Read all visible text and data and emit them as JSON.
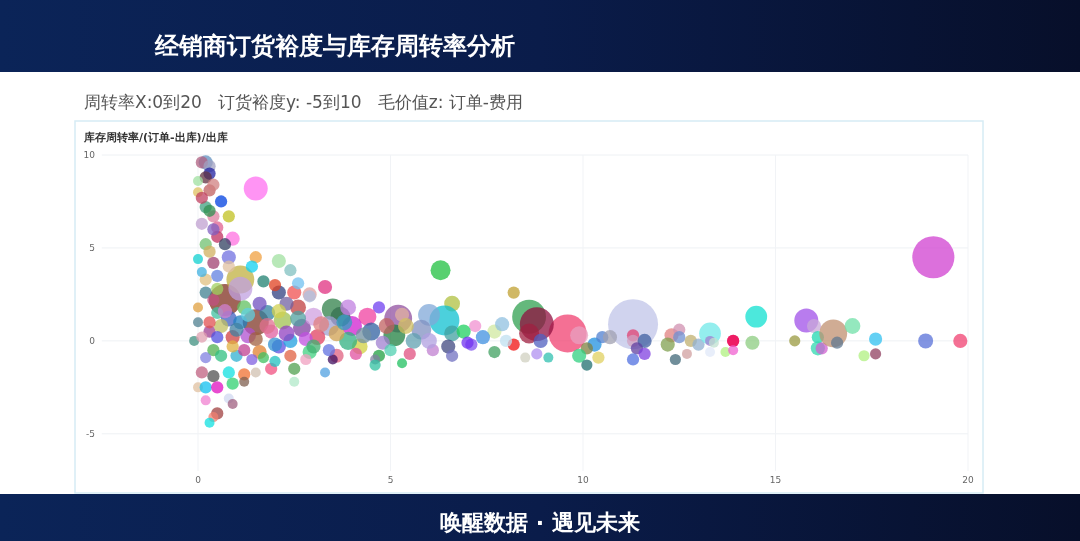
{
  "chart_data": {
    "type": "bubble",
    "title": "经销商订货裕度与库存周转率分析",
    "subtitle": "周转率X:0到20   订货裕度y: -5到10   毛价值z: 订单-费用",
    "ylabel": "库存周转率/(订单-出库)/出库",
    "annotations": [
      "唤醒数据 · 遇见未来"
    ],
    "xlim": [
      -2.5,
      20
    ],
    "xticks": [
      0,
      5,
      10,
      15,
      20
    ],
    "ylim": [
      -7,
      10
    ],
    "yticks": [
      -5,
      0,
      5,
      10
    ],
    "grid": true,
    "x": [
      11.3,
      14.5,
      14.4,
      15.5,
      15.8,
      16,
      16.1,
      16.1,
      16.2,
      16.5,
      16.6,
      17,
      17.6,
      17.3,
      17.6,
      18.9,
      19.8,
      19.1,
      12.3,
      12.5,
      12.2,
      12.5,
      12.8,
      13,
      12.7,
      12.4,
      13.3,
      13.3,
      13.4,
      13.3,
      13.9,
      13.9,
      13.7,
      13.9,
      9.6,
      9.9,
      10.3,
      10.1,
      9.9,
      10.1,
      10.4,
      10.5,
      10.7,
      11.3,
      11.3,
      11.6,
      11.4,
      11.6,
      11.3,
      8.2,
      8.6,
      8.8,
      8.6,
      8.9,
      9.1,
      8.8,
      8.5,
      8.2,
      8,
      7.7,
      7.4,
      7.2,
      7.1,
      6.6,
      6.4,
      6,
      5.8,
      6.6,
      6.9,
      6.5,
      6.6,
      7,
      6.1,
      5.6,
      5.2,
      5.1,
      4.7,
      5.3,
      4.8,
      4.4,
      4,
      4.2,
      4.7,
      4.6,
      5.3,
      4.6,
      3.7,
      3.5,
      3.4,
      3.9,
      3.6,
      3.5,
      6.3,
      1.5,
      3.3,
      2.9,
      2.1,
      2.5,
      2.6,
      1.5,
      0.7,
      1.1,
      1.1,
      1.5,
      1.4,
      2.1,
      2.4,
      1.7,
      2,
      2.9,
      0.2,
      0.1,
      0.3,
      0.3,
      0.2,
      0,
      0.3,
      0,
      0.6,
      0.8,
      0.2,
      0.1,
      0.4,
      0.1,
      0.5,
      0.9,
      0.5,
      0.7,
      0.2,
      0.8,
      0,
      0.4,
      0.8,
      0.2,
      0.1,
      0.2,
      0,
      -0.1,
      0.4,
      0.3,
      0.4,
      0.3,
      0.5,
      0.4,
      0.5,
      0.3,
      0.4,
      0,
      0.1,
      0.4,
      0.8,
      0.9,
      1.2,
      1.2,
      1.5,
      1.9,
      2.5,
      3.3,
      2.5,
      0,
      0.2,
      0.5,
      0.2,
      0.8,
      0.9,
      0.5,
      0.4,
      0.3,
      0.8,
      0.9,
      1,
      1.2,
      1.3,
      1.6,
      1.8,
      1.9,
      2.1,
      2.2,
      2.4,
      2.6,
      2.7,
      2.9,
      3,
      3.1,
      1.4,
      2,
      2.8,
      0.6,
      1.1,
      2.3,
      3.9,
      4.5,
      5.5,
      6,
      7.7,
      7.9,
      5.4,
      0.3,
      0.5,
      0.6,
      0.7,
      0.9,
      1,
      1.2,
      1.3,
      1.5,
      1.6,
      1.7,
      1.8,
      2,
      2.1,
      2.3,
      2.4,
      2.6,
      2.8,
      3,
      3.2,
      3.4,
      3.6,
      3.8,
      4.1,
      4.3,
      4.9,
      5,
      0.2,
      0.1,
      0.5
    ],
    "values": [
      0.9,
      1.3,
      -0.1,
      0,
      1.1,
      0.8,
      0.2,
      -0.4,
      -0.4,
      0.4,
      -0.1,
      0.8,
      0.1,
      -0.8,
      -0.7,
      0,
      0,
      4.5,
      0.3,
      0.6,
      -0.2,
      0.2,
      0,
      -0.2,
      -0.7,
      -1,
      0.4,
      0,
      -0.1,
      -0.6,
      0,
      0,
      -0.6,
      -0.5,
      0.4,
      0.3,
      -0.2,
      -0.4,
      -0.8,
      -1.3,
      -0.9,
      0.2,
      0.2,
      0.3,
      0,
      0,
      -0.4,
      -0.7,
      -1,
      2.6,
      1.3,
      0.9,
      0.4,
      0,
      -0.9,
      -0.7,
      -0.9,
      -0.2,
      0,
      0.5,
      0.2,
      0.8,
      -0.2,
      2,
      1.1,
      1.4,
      0.6,
      0.4,
      0.5,
      -0.3,
      -0.8,
      -0.1,
      -0.5,
      0,
      1.2,
      0.3,
      1.8,
      1.4,
      -0.1,
      1.3,
      0.8,
      -0.3,
      -0.8,
      -1,
      -1.2,
      -1.3,
      1.3,
      1.7,
      0.8,
      0,
      -0.8,
      -1,
      3.8,
      8.2,
      2.9,
      2.5,
      2.6,
      2.6,
      3.1,
      1,
      2.2,
      3.3,
      2.8,
      4.5,
      4,
      4.3,
      3.8,
      3.2,
      3,
      2.4,
      9.6,
      9.6,
      9.4,
      9,
      8.8,
      8.6,
      8.1,
      8,
      7.5,
      6.7,
      7.2,
      7.7,
      6.7,
      6.3,
      6.1,
      5.5,
      5.6,
      5.2,
      5.2,
      4.5,
      4.4,
      4.2,
      4,
      3.3,
      3.7,
      2.6,
      1,
      0,
      8.4,
      7,
      6,
      4.8,
      3.5,
      2.2,
      1.5,
      0.5,
      -0.5,
      1.8,
      -1.7,
      -1.9,
      -1.7,
      -2.3,
      -1.8,
      -2.2,
      -1.7,
      -1.5,
      -1.5,
      -1.7,
      -2.2,
      -2.5,
      -2.5,
      -2.5,
      -3.2,
      -3.1,
      -3.4,
      -3.9,
      -4.1,
      -4.4,
      1.2,
      0.2,
      -0.8,
      1.8,
      0.3,
      -0.6,
      1.5,
      0.5,
      -0.3,
      1.1,
      0,
      1.8,
      0.7,
      -0.6,
      1.3,
      0.2,
      -1,
      -1.1,
      -1,
      0.8,
      1,
      2,
      1.8,
      0.5,
      -0.7,
      0,
      -0.6,
      0.9,
      0.8,
      1,
      0.2,
      -0.8,
      1.6,
      -0.3,
      0.6,
      -0.5,
      1.4,
      0.1,
      2,
      -0.9,
      0.8,
      -0.2,
      1.6,
      0.4,
      -0.8,
      1.2,
      0.1,
      -0.3,
      0.9,
      -0.5,
      0.4,
      1,
      -0.7,
      0.3,
      0.8,
      -0.5,
      -0.9,
      0.2,
      2.8
    ],
    "sizes": [
      1,
      0.19,
      0.08,
      0.05,
      0.23,
      0.08,
      0.06,
      0.08,
      0.06,
      0.31,
      0.06,
      0.1,
      0.07,
      0.05,
      0.05,
      0.09,
      0.08,
      0.71,
      0.08,
      0.06,
      0.08,
      0.06,
      0.06,
      0.06,
      0.04,
      0.05,
      0.19,
      0.04,
      0.04,
      0.04,
      0.06,
      0.06,
      0.04,
      0.04,
      0.58,
      0.13,
      0.08,
      0.06,
      0.08,
      0.05,
      0.06,
      0.06,
      0.08,
      0.06,
      0.06,
      0.08,
      0.06,
      0.06,
      0.06,
      0.06,
      0.46,
      0.46,
      0.16,
      0.08,
      0.04,
      0.05,
      0.04,
      0.06,
      0.06,
      0.08,
      0.08,
      0.06,
      0.06,
      0.1,
      0.36,
      0.19,
      0.16,
      0.1,
      0.08,
      0.08,
      0.06,
      0.06,
      0.06,
      0.1,
      0.31,
      0.19,
      0.06,
      0.08,
      0.08,
      0.13,
      0.16,
      0.1,
      0.06,
      0.04,
      0.04,
      0.05,
      0.16,
      0.19,
      0.16,
      0.13,
      0.08,
      0.04,
      0.16,
      0.23,
      0.08,
      0.08,
      0.08,
      0.08,
      0.06,
      0.27,
      0.41,
      0.31,
      0.23,
      0.06,
      0.06,
      0.08,
      0.06,
      0.06,
      0.06,
      0.06,
      0.08,
      0.06,
      0.06,
      0.06,
      0.06,
      0.04,
      0.06,
      0.04,
      0.06,
      0.06,
      0.06,
      0.06,
      0.06,
      0.06,
      0.06,
      0.08,
      0.06,
      0.06,
      0.06,
      0.08,
      0.04,
      0.06,
      0.06,
      0.06,
      0.04,
      0.06,
      0.04,
      0.04,
      0.06,
      0.06,
      0.06,
      0.06,
      0.06,
      0.06,
      0.06,
      0.06,
      0.06,
      0.04,
      0.06,
      0.06,
      0.06,
      0.06,
      0.06,
      0.04,
      0.04,
      0.06,
      0.06,
      0.04,
      0.04,
      0.04,
      0.06,
      0.06,
      0.04,
      0.04,
      0.04,
      0.06,
      0.04,
      0.04,
      0.1,
      0.08,
      0.06,
      0.08,
      0.1,
      0.08,
      0.1,
      0.08,
      0.08,
      0.13,
      0.08,
      0.1,
      0.13,
      0.08,
      0.13,
      0.1,
      0.05,
      0.05,
      0.05,
      0.08,
      0.08,
      0.08,
      0.1,
      0.13,
      0.06,
      0.1,
      0.06,
      0.08,
      0.1,
      0.06,
      0.06,
      0.06,
      0.08,
      0.06,
      0.08,
      0.06,
      0.08,
      0.08,
      0.08,
      0.05,
      0.1,
      0.08,
      0.08,
      0.1,
      0.06,
      0.1,
      0.08,
      0.08,
      0.1,
      0.06,
      0.1,
      0.1,
      0.06,
      0.1,
      0.1,
      0.06,
      0.05,
      0.05,
      0.06
    ],
    "colors": [
      "#c0c4e8",
      "#10e0d0",
      "#8ccc80",
      "#9a9a40",
      "#a050e8",
      "#c8a8d8",
      "#20d8b0",
      "#30d8b0",
      "#d060d0",
      "#c09070",
      "#607890",
      "#70e0a8",
      "#30c0f0",
      "#b0f080",
      "#904060",
      "#5870d8",
      "#f04070",
      "#d040d0",
      "#e08080",
      "#d090b0",
      "#80a050",
      "#7090d0",
      "#c0b070",
      "#90b0d0",
      "#d0a0a0",
      "#406878",
      "#70e8e8",
      "#a080d0",
      "#c0e0d0",
      "#e0e8f8",
      "#e04080",
      "#f00050",
      "#b0f080",
      "#f060d0",
      "#f04070",
      "#e8a0c0",
      "#2090e0",
      "#808040",
      "#30d080",
      "#207070",
      "#e0d060",
      "#5080d0",
      "#a0a0b0",
      "#e04070",
      "#d0a0c0",
      "#4060a0",
      "#6040a0",
      "#8040e0",
      "#5070e0",
      "#c0a030",
      "#30a050",
      "#901040",
      "#a02040",
      "#5060c0",
      "#30c0b0",
      "#b090f0",
      "#d0d0c0",
      "#f01010",
      "#c0e0f0",
      "#d0e8a0",
      "#4090e0",
      "#f090d0",
      "#8050f0",
      "#b0c040",
      "#10c0d0",
      "#80a8d8",
      "#8090c0",
      "#40a0a0",
      "#20d060",
      "#404880",
      "#7070c0",
      "#7030f0",
      "#c080d0",
      "#60a0b0",
      "#9050a0",
      "#208040",
      "#7040f0",
      "#e0b0a0",
      "#a080d0",
      "#f040a0",
      "#d020d0",
      "#d0d040",
      "#20a040",
      "#8080a0",
      "#20c060",
      "#30c0a0",
      "#404060",
      "#30804a",
      "#a0a0d0",
      "#30b080",
      "#e06080",
      "#401060",
      "#20c040",
      "#ff70f0",
      "#e03080",
      "#e0a0a0",
      "#304080",
      "#f05050",
      "#70c0f0",
      "#803828",
      "#803020",
      "#c0b040",
      "#c0a0e0",
      "#f0a040",
      "#10d0f0",
      "#a0e0a0",
      "#80c0c0",
      "#208070",
      "#e04020",
      "#b0c0e0",
      "#6090c0",
      "#b06080",
      "#a0a0c0",
      "#2020a0",
      "#603040",
      "#a0e0a0",
      "#c06060",
      "#e0c060",
      "#0040e0",
      "#c0c020",
      "#40a080",
      "#c04060",
      "#e080a0",
      "#c0a0d0",
      "#e06090",
      "#ff70e0",
      "#c03060",
      "#304060",
      "#70c070",
      "#7070e0",
      "#10d0d0",
      "#a04070",
      "#e0c0a0",
      "#e0c080",
      "#40b0e0",
      "#408090",
      "#508090",
      "#409080",
      "#d08080",
      "#309050",
      "#8060c0",
      "#d0b060",
      "#6080e0",
      "#c05080",
      "#40c0a0",
      "#a04090",
      "#50b050",
      "#e0a040",
      "#c06080",
      "#505050",
      "#10e0e0",
      "#30d070",
      "#f07030",
      "#806050",
      "#d0c0b0",
      "#f05080",
      "#50a050",
      "#50a0e0",
      "#b0e8c8",
      "#e0c0a0",
      "#10c0f0",
      "#e010c0",
      "#f080d0",
      "#d0d8f0",
      "#a06080",
      "#a04040",
      "#f08070",
      "#10e0e0",
      "#4060c0",
      "#d04040",
      "#30b0d0",
      "#60c060",
      "#b050d0",
      "#e08030",
      "#3080a0",
      "#e060a0",
      "#6050e0",
      "#a0c050",
      "#20a0e0",
      "#c04040",
      "#8040a0",
      "#40d080",
      "#d0a0e0",
      "#e04060",
      "#8060e0",
      "#20c0c0",
      "#f0a0c0",
      "#c0c060",
      "#2080c0",
      "#7060a0",
      "#c080e0",
      "#3060a0",
      "#e05080",
      "#b0a0e0",
      "#40a060",
      "#90c0e0",
      "#d0c060",
      "#e05050",
      "#5050e0",
      "#30c080",
      "#d080d0",
      "#e0b040",
      "#4080a0",
      "#c04090",
      "#60d0e0",
      "#a06040",
      "#7050c0",
      "#40c060",
      "#e07090",
      "#3090d0",
      "#d0d050",
      "#9040c0",
      "#e06040",
      "#50a0a0",
      "#c050e0",
      "#40b070",
      "#e08080",
      "#6070e0",
      "#d0a050",
      "#30a0c0",
      "#e050a0",
      "#7090a0",
      "#c06060",
      "#50d0b0",
      "#8080e0",
      "#e0a0b0",
      "#a0d060"
    ]
  }
}
